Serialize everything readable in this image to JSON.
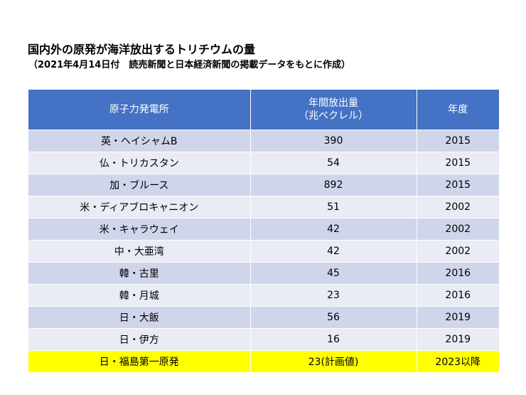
{
  "title": "国内外の原発が海洋放出するトリチウムの量",
  "subtitle": "（2021年4月14日付　読売新聞と日本経済新聞の掲載データをもとに作成）",
  "table": {
    "headers": {
      "plant": "原子力発電所",
      "amount_line1": "年間放出量",
      "amount_line2": "（兆ベクレル）",
      "year": "年度"
    },
    "rows": [
      {
        "plant": "英・ヘイシャムB",
        "amount": "390",
        "year": "2015"
      },
      {
        "plant": "仏・トリカスタン",
        "amount": "54",
        "year": "2015"
      },
      {
        "plant": "加・ブルース",
        "amount": "892",
        "year": "2015"
      },
      {
        "plant": "米・ディアブロキャニオン",
        "amount": "51",
        "year": "2002"
      },
      {
        "plant": "米・キャラウェイ",
        "amount": "42",
        "year": "2002"
      },
      {
        "plant": "中・大亜湾",
        "amount": "42",
        "year": "2002"
      },
      {
        "plant": "韓・古里",
        "amount": "45",
        "year": "2016"
      },
      {
        "plant": "韓・月城",
        "amount": "23",
        "year": "2016"
      },
      {
        "plant": "日・大飯",
        "amount": "56",
        "year": "2019"
      },
      {
        "plant": "日・伊方",
        "amount": "16",
        "year": "2019"
      },
      {
        "plant": "日・福島第一原発",
        "amount": "23(計画値)",
        "year": "2023以降"
      }
    ]
  },
  "colors": {
    "header_bg": "#4472c4",
    "row_odd": "#cfd5ea",
    "row_even": "#e9ebf5",
    "highlight": "#ffff00"
  }
}
